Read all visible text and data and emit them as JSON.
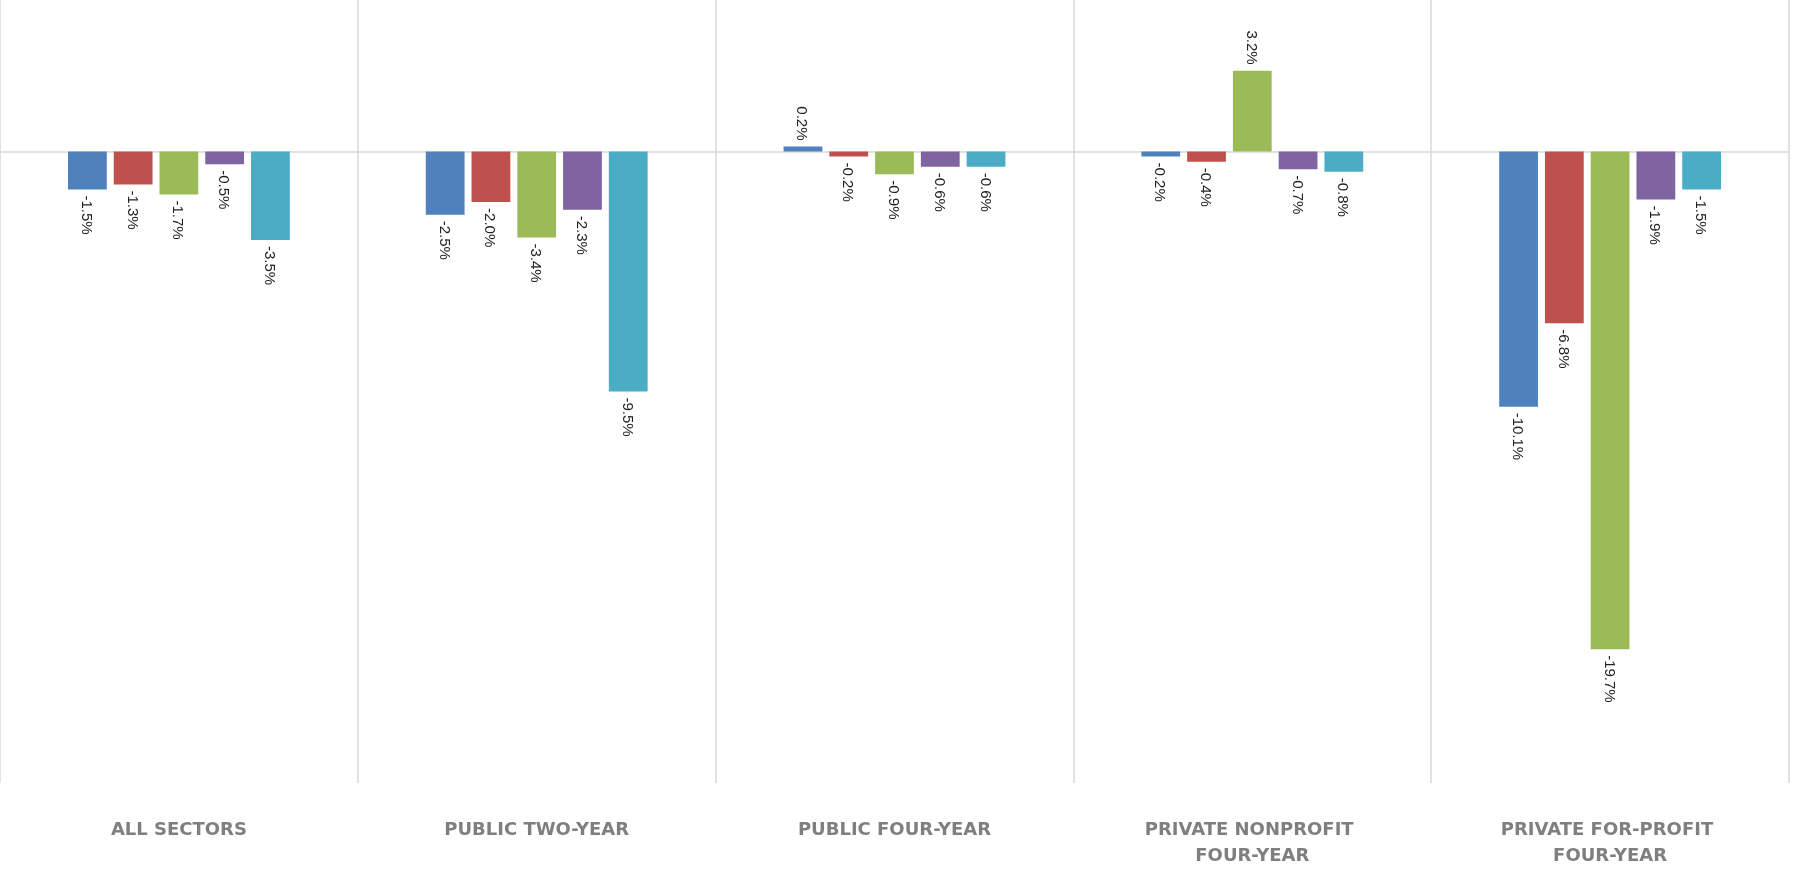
{
  "chart_data": {
    "type": "bar",
    "categories": [
      "ALL SECTORS",
      "PUBLIC TWO-YEAR",
      "PUBLIC FOUR-YEAR",
      "PRIVATE NONPROFIT FOUR-YEAR",
      "PRIVATE FOR-PROFIT FOUR-YEAR"
    ],
    "series": [
      {
        "color": "#4f81bd",
        "values": [
          -1.5,
          -2.5,
          0.2,
          -0.2,
          -10.1
        ],
        "value_labels": [
          "-1.5%",
          "-2.5%",
          "0.2%",
          "-0.2%",
          "-10.1%"
        ]
      },
      {
        "color": "#c0504d",
        "values": [
          -1.3,
          -2.0,
          -0.2,
          -0.4,
          -6.8
        ],
        "value_labels": [
          "-1.3%",
          "-2.0%",
          "-0.2%",
          "-0.4%",
          "-6.8%"
        ]
      },
      {
        "color": "#9bbb59",
        "values": [
          -1.7,
          -3.4,
          -0.9,
          3.2,
          -19.7
        ],
        "value_labels": [
          "-1.7%",
          "-3.4%",
          "-0.9%",
          "3.2%",
          "-19.7%"
        ]
      },
      {
        "color": "#8064a2",
        "values": [
          -0.5,
          -2.3,
          -0.6,
          -0.7,
          -1.9
        ],
        "value_labels": [
          "-0.5%",
          "-2.3%",
          "-0.6%",
          "-0.7%",
          "-1.9%"
        ]
      },
      {
        "color": "#4bacc6",
        "values": [
          -3.5,
          -9.5,
          -0.6,
          -0.8,
          -1.5
        ],
        "value_labels": [
          "-3.5%",
          "-9.5%",
          "-0.6%",
          "-0.8%",
          "-1.5%"
        ]
      }
    ],
    "ylim": [
      -25,
      6
    ],
    "grid": "x",
    "tick_labels": "x"
  }
}
